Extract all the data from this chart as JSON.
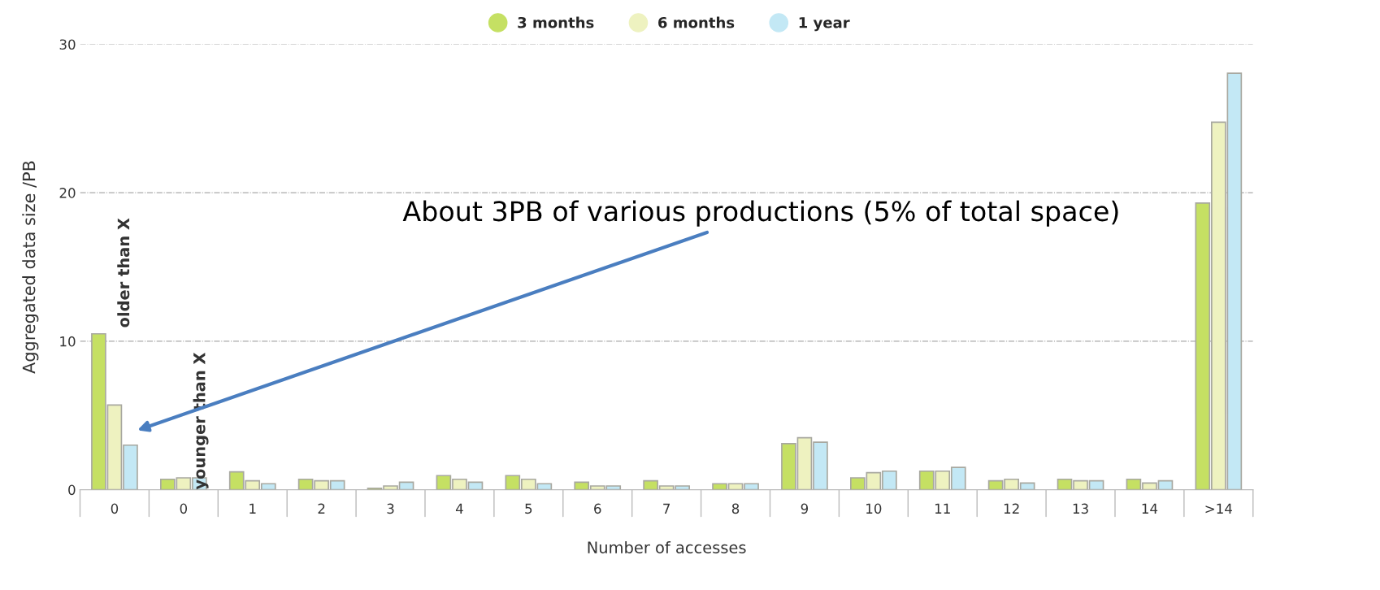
{
  "chart_data": {
    "type": "bar",
    "xlabel": "Number of accesses",
    "ylabel": "Aggregated data size /PB",
    "categories": [
      "0",
      "0",
      "1",
      "2",
      "3",
      "4",
      "5",
      "6",
      "7",
      "8",
      "9",
      "10",
      "11",
      "12",
      "13",
      "14",
      ">14"
    ],
    "series": [
      {
        "name": "3 months",
        "color": "#c5e063",
        "values": [
          10.5,
          0.7,
          1.2,
          0.7,
          0.1,
          0.95,
          0.95,
          0.5,
          0.6,
          0.4,
          3.1,
          0.8,
          1.25,
          0.6,
          0.7,
          0.7,
          19.3
        ]
      },
      {
        "name": "6 months",
        "color": "#eef2c0",
        "values": [
          5.7,
          0.8,
          0.6,
          0.6,
          0.25,
          0.7,
          0.7,
          0.25,
          0.25,
          0.4,
          3.5,
          1.15,
          1.25,
          0.7,
          0.6,
          0.45,
          24.75
        ]
      },
      {
        "name": "1 year",
        "color": "#c3e8f5",
        "values": [
          3.0,
          0.8,
          0.4,
          0.6,
          0.5,
          0.5,
          0.4,
          0.25,
          0.25,
          0.4,
          3.2,
          1.25,
          1.5,
          0.45,
          0.6,
          0.6,
          28.05
        ]
      }
    ],
    "ylim": [
      0,
      30
    ],
    "yticks": [
      0,
      10,
      20,
      30
    ],
    "grid": "y",
    "legend": "top",
    "annotations": [
      "older than X",
      "younger than X",
      "About 3PB of various productions (5% of total space)"
    ]
  }
}
